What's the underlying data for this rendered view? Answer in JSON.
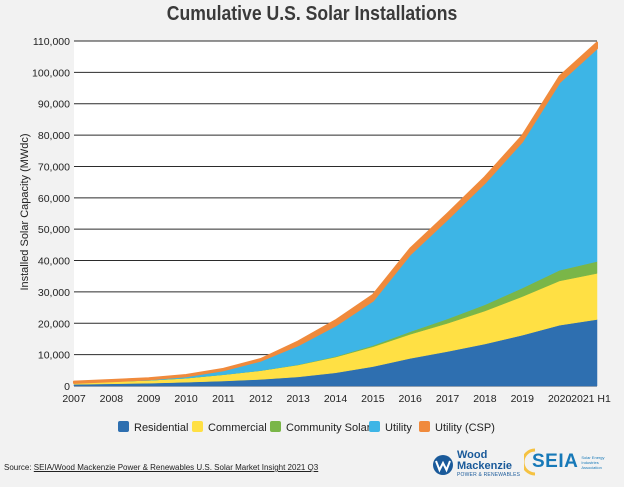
{
  "chart_data": {
    "type": "area",
    "title": "Cumulative U.S. Solar Installations",
    "xlabel": "",
    "ylabel": "Installed Solar Capacity (MWdc)",
    "stacked": true,
    "categories": [
      "2007",
      "2008",
      "2009",
      "2010",
      "2011",
      "2012",
      "2013",
      "2014",
      "2015",
      "2016",
      "2017",
      "2018",
      "2019",
      "2020",
      "2021 H1"
    ],
    "ylim": [
      0,
      110000
    ],
    "yticks": [
      0,
      10000,
      20000,
      30000,
      40000,
      50000,
      60000,
      70000,
      80000,
      90000,
      100000,
      110000
    ],
    "ytick_labels": [
      "0",
      "10,000",
      "20,000",
      "30,000",
      "40,000",
      "50,000",
      "60,000",
      "70,000",
      "80,000",
      "90,000",
      "100,000",
      "110,000"
    ],
    "grid": true,
    "legend_position": "bottom",
    "series": [
      {
        "name": "Residential",
        "color": "#2e6fb0",
        "values": [
          500,
          700,
          900,
          1200,
          1600,
          2100,
          2900,
          4200,
          6200,
          8800,
          11000,
          13400,
          16200,
          19400,
          21200
        ]
      },
      {
        "name": "Commercial",
        "color": "#ffe044",
        "values": [
          500,
          700,
          900,
          1300,
          2000,
          2800,
          3800,
          5000,
          6300,
          7700,
          9000,
          10500,
          12300,
          14100,
          14700
        ]
      },
      {
        "name": "Community Solar",
        "color": "#7ab648",
        "values": [
          0,
          0,
          0,
          0,
          0,
          0,
          100,
          200,
          400,
          800,
          1400,
          2000,
          2700,
          3400,
          3800
        ]
      },
      {
        "name": "Utility",
        "color": "#3db5e6",
        "values": [
          0,
          100,
          300,
          600,
          1400,
          3200,
          6200,
          9900,
          14300,
          24700,
          31800,
          38900,
          46800,
          60000,
          68000
        ]
      },
      {
        "name": "Utility (CSP)",
        "color": "#f08a3c",
        "values": [
          400,
          400,
          400,
          400,
          500,
          500,
          1200,
          1600,
          1800,
          1800,
          1800,
          1800,
          1800,
          1800,
          1800
        ]
      }
    ]
  },
  "source": {
    "prefix": "Source: ",
    "text": "SEIA/Wood Mackenzie Power & Renewables U.S. Solar Market Insight 2021 Q3"
  },
  "logos": {
    "wood_mackenzie_line1": "Wood",
    "wood_mackenzie_line2": "Mackenzie",
    "wood_mackenzie_tagline": "POWER & RENEWABLES",
    "seia": "SEIA",
    "seia_full": "Solar Energy Industries Association"
  }
}
